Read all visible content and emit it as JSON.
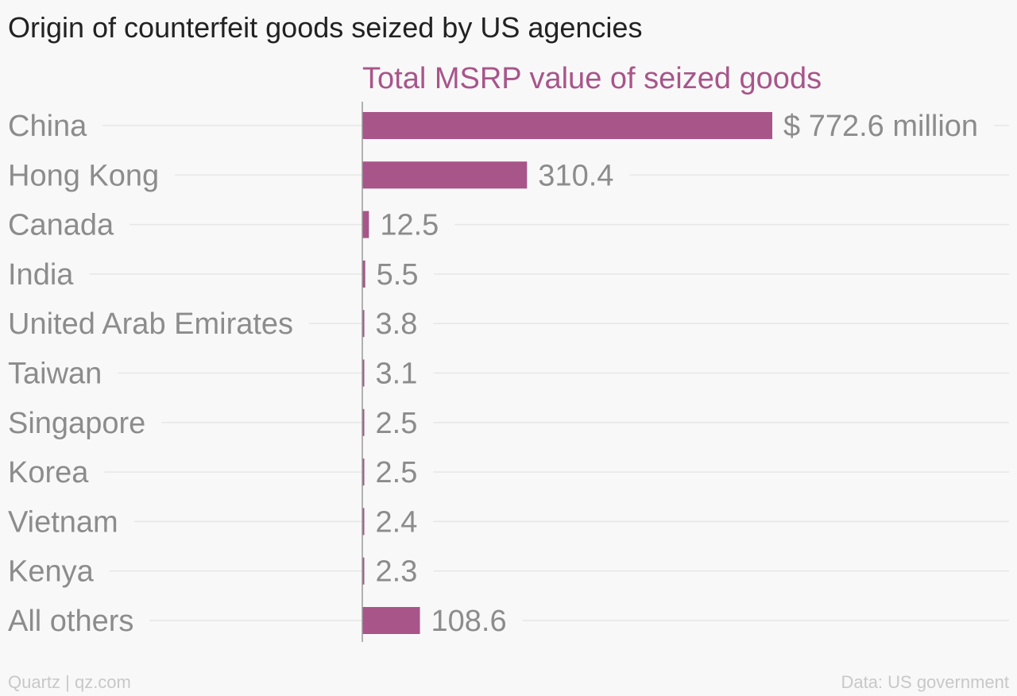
{
  "title": "Origin of counterfeit goods seized by US agencies",
  "footer": {
    "source_left": "Quartz | qz.com",
    "source_right": "Data: US government"
  },
  "colors": {
    "bar": "#a8558a",
    "axis": "#999999",
    "gridline": "#e6e6e6",
    "label": "#8c8c8c"
  },
  "chart_data": {
    "type": "bar",
    "orientation": "horizontal",
    "title": "Origin of counterfeit goods seized by US agencies",
    "series": [
      {
        "name": "Total MSRP value of seized goods",
        "values": [
          772.6,
          310.4,
          12.5,
          5.5,
          3.8,
          3.1,
          2.5,
          2.5,
          2.4,
          2.3,
          108.6
        ]
      }
    ],
    "categories": [
      "China",
      "Hong Kong",
      "Canada",
      "India",
      "United Arab Emirates",
      "Taiwan",
      "Singapore",
      "Korea",
      "Vietnam",
      "Kenya",
      "All others"
    ],
    "value_labels": [
      "$ 772.6 million",
      "310.4",
      "12.5",
      "5.5",
      "3.8",
      "3.1",
      "2.5",
      "2.5",
      "2.4",
      "2.3",
      "108.6"
    ],
    "xlim": [
      0,
      772.6
    ],
    "grid": true,
    "legend": "none"
  }
}
